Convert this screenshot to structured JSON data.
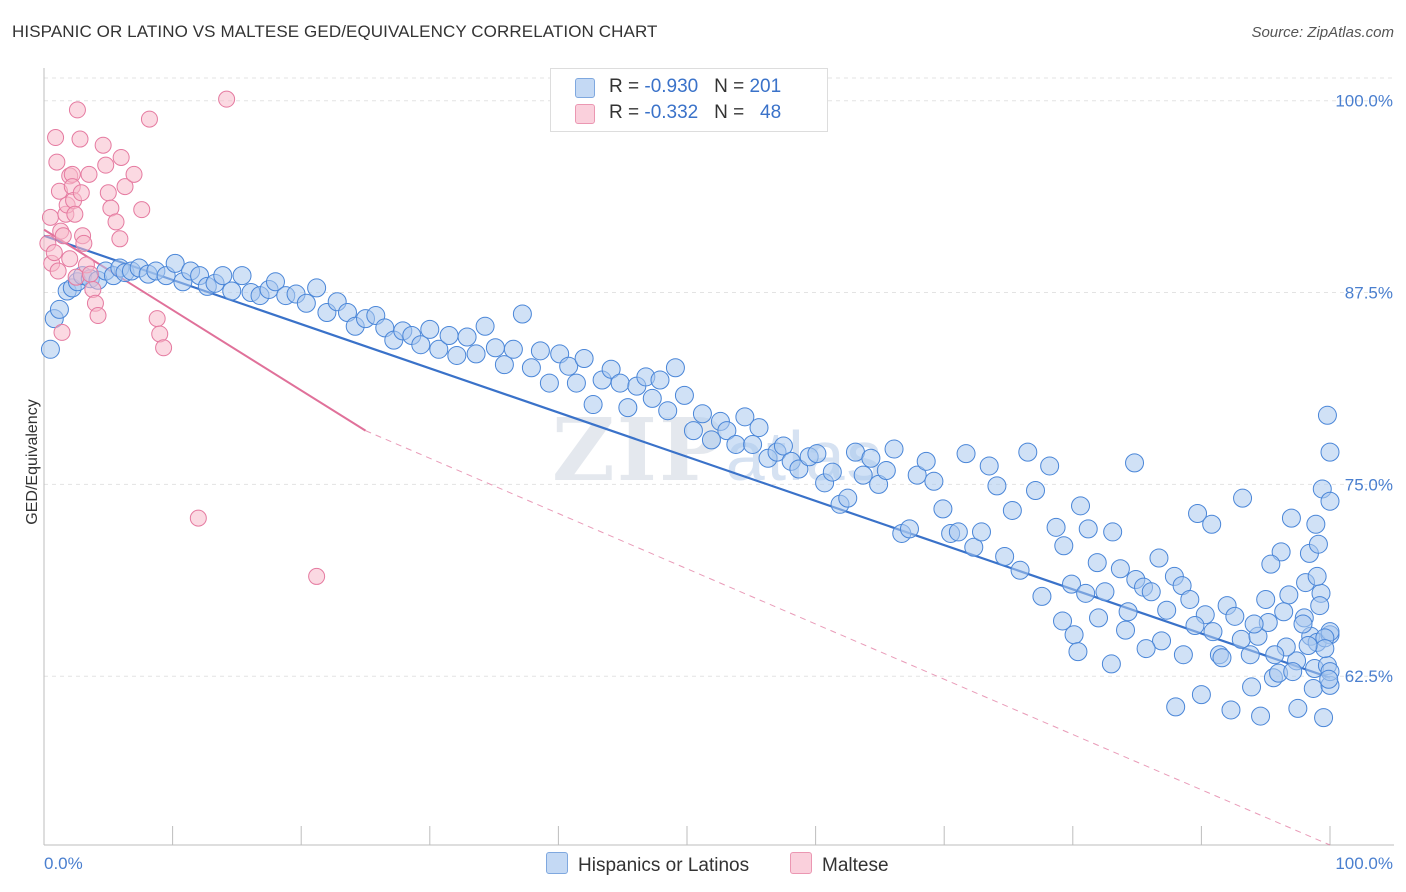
{
  "header": {
    "title": "HISPANIC OR LATINO VS MALTESE GED/EQUIVALENCY CORRELATION CHART",
    "source": "Source: ZipAtlas.com"
  },
  "watermark": {
    "zip": "ZIP",
    "atlas": "atlas"
  },
  "legend_top": {
    "rows": [
      {
        "r_label": "R = ",
        "r_value": "-0.930",
        "n_label": "N = ",
        "n_value": "201",
        "color": "#a9c8ef"
      },
      {
        "r_label": "R = ",
        "r_value": "-0.332",
        "n_label": "N = ",
        "n_value": "48",
        "color": "#f7b9cb"
      }
    ]
  },
  "legend_bottom": {
    "items": [
      {
        "label": "Hispanics or Latinos",
        "color": "#a9c8ef"
      },
      {
        "label": "Maltese",
        "color": "#f7b9cb"
      }
    ]
  },
  "chart_data": {
    "type": "scatter",
    "title": "HISPANIC OR LATINO VS MALTESE GED/EQUIVALENCY CORRELATION CHART",
    "xlabel": "",
    "ylabel": "GED/Equivalency",
    "xlim": [
      0,
      100
    ],
    "ylim": [
      51.5,
      102
    ],
    "x_tick_labels": [
      "0.0%",
      "100.0%"
    ],
    "y_ticks": [
      62.5,
      75.0,
      87.5,
      100.0
    ],
    "y_tick_labels": [
      "62.5%",
      "75.0%",
      "87.5%",
      "100.0%"
    ],
    "grid": true,
    "grid_style": "dashed horizontal",
    "legend_position": "top-center",
    "series": [
      {
        "name": "Hispanics or Latinos",
        "color": "#4a86d8",
        "fill": "#a9c8ef",
        "trend": {
          "x0": 0,
          "y0": 91.2,
          "x1": 100,
          "y1": 62.4,
          "style": "solid",
          "line_color": "#3a72c9"
        },
        "points": [
          [
            0.5,
            83.8
          ],
          [
            0.8,
            85.8
          ],
          [
            1.2,
            86.4
          ],
          [
            1.8,
            87.6
          ],
          [
            2.2,
            87.8
          ],
          [
            2.6,
            88.2
          ],
          [
            3.0,
            88.6
          ],
          [
            3.6,
            88.4
          ],
          [
            4.2,
            88.3
          ],
          [
            4.8,
            88.9
          ],
          [
            5.4,
            88.6
          ],
          [
            5.9,
            89.1
          ],
          [
            6.3,
            88.8
          ],
          [
            6.8,
            88.9
          ],
          [
            7.4,
            89.1
          ],
          [
            8.1,
            88.7
          ],
          [
            8.7,
            88.9
          ],
          [
            9.5,
            88.6
          ],
          [
            10.2,
            89.4
          ],
          [
            10.8,
            88.2
          ],
          [
            11.4,
            88.9
          ],
          [
            12.1,
            88.6
          ],
          [
            12.7,
            87.9
          ],
          [
            13.3,
            88.1
          ],
          [
            13.9,
            88.6
          ],
          [
            14.6,
            87.6
          ],
          [
            15.4,
            88.6
          ],
          [
            16.1,
            87.5
          ],
          [
            16.8,
            87.3
          ],
          [
            17.5,
            87.7
          ],
          [
            18.0,
            88.2
          ],
          [
            18.8,
            87.3
          ],
          [
            19.6,
            87.4
          ],
          [
            20.4,
            86.8
          ],
          [
            21.2,
            87.8
          ],
          [
            22.0,
            86.2
          ],
          [
            22.8,
            86.9
          ],
          [
            23.6,
            86.2
          ],
          [
            24.2,
            85.3
          ],
          [
            25.0,
            85.8
          ],
          [
            25.8,
            86.0
          ],
          [
            26.5,
            85.2
          ],
          [
            27.2,
            84.4
          ],
          [
            27.9,
            85.0
          ],
          [
            28.6,
            84.7
          ],
          [
            29.3,
            84.1
          ],
          [
            30.0,
            85.1
          ],
          [
            30.7,
            83.8
          ],
          [
            31.5,
            84.7
          ],
          [
            32.1,
            83.4
          ],
          [
            32.9,
            84.6
          ],
          [
            33.6,
            83.5
          ],
          [
            34.3,
            85.3
          ],
          [
            35.1,
            83.9
          ],
          [
            35.8,
            82.8
          ],
          [
            36.5,
            83.8
          ],
          [
            37.2,
            86.1
          ],
          [
            37.9,
            82.6
          ],
          [
            38.6,
            83.7
          ],
          [
            39.3,
            81.6
          ],
          [
            40.1,
            83.5
          ],
          [
            40.8,
            82.7
          ],
          [
            41.4,
            81.6
          ],
          [
            42.0,
            83.2
          ],
          [
            42.7,
            80.2
          ],
          [
            43.4,
            81.8
          ],
          [
            44.1,
            82.5
          ],
          [
            44.8,
            81.6
          ],
          [
            45.4,
            80.0
          ],
          [
            46.1,
            81.4
          ],
          [
            46.8,
            82.0
          ],
          [
            47.3,
            80.6
          ],
          [
            47.9,
            81.8
          ],
          [
            48.5,
            79.8
          ],
          [
            49.1,
            82.6
          ],
          [
            49.8,
            80.8
          ],
          [
            50.5,
            78.5
          ],
          [
            51.2,
            79.6
          ],
          [
            51.9,
            77.9
          ],
          [
            52.6,
            79.1
          ],
          [
            53.1,
            78.5
          ],
          [
            53.8,
            77.6
          ],
          [
            54.5,
            79.4
          ],
          [
            55.1,
            77.6
          ],
          [
            55.6,
            78.7
          ],
          [
            56.3,
            76.7
          ],
          [
            57.0,
            77.1
          ],
          [
            57.5,
            77.5
          ],
          [
            58.1,
            76.5
          ],
          [
            58.7,
            76.0
          ],
          [
            59.5,
            76.8
          ],
          [
            60.1,
            77.0
          ],
          [
            60.7,
            75.1
          ],
          [
            61.3,
            75.8
          ],
          [
            61.9,
            73.7
          ],
          [
            62.5,
            74.1
          ],
          [
            63.1,
            77.1
          ],
          [
            63.7,
            75.6
          ],
          [
            64.3,
            76.7
          ],
          [
            64.9,
            75.0
          ],
          [
            65.5,
            75.9
          ],
          [
            66.1,
            77.3
          ],
          [
            66.7,
            71.8
          ],
          [
            67.3,
            72.1
          ],
          [
            67.9,
            75.6
          ],
          [
            68.6,
            76.5
          ],
          [
            69.2,
            75.2
          ],
          [
            69.9,
            73.4
          ],
          [
            70.5,
            71.8
          ],
          [
            71.1,
            71.9
          ],
          [
            71.7,
            77.0
          ],
          [
            72.3,
            70.9
          ],
          [
            72.9,
            71.9
          ],
          [
            73.5,
            76.2
          ],
          [
            74.1,
            74.9
          ],
          [
            74.7,
            70.3
          ],
          [
            75.3,
            73.3
          ],
          [
            75.9,
            69.4
          ],
          [
            76.5,
            77.1
          ],
          [
            77.1,
            74.6
          ],
          [
            77.6,
            67.7
          ],
          [
            78.2,
            76.2
          ],
          [
            78.7,
            72.2
          ],
          [
            79.3,
            71.0
          ],
          [
            79.9,
            68.5
          ],
          [
            80.6,
            73.6
          ],
          [
            81.2,
            72.1
          ],
          [
            81.9,
            69.9
          ],
          [
            82.5,
            68.0
          ],
          [
            83.1,
            71.9
          ],
          [
            83.7,
            69.5
          ],
          [
            84.3,
            66.7
          ],
          [
            84.9,
            68.8
          ],
          [
            85.5,
            68.3
          ],
          [
            86.1,
            68.0
          ],
          [
            86.7,
            70.2
          ],
          [
            87.3,
            66.8
          ],
          [
            87.9,
            69.0
          ],
          [
            88.5,
            68.4
          ],
          [
            89.1,
            67.5
          ],
          [
            89.7,
            73.1
          ],
          [
            90.3,
            66.5
          ],
          [
            90.9,
            65.4
          ],
          [
            91.4,
            63.9
          ],
          [
            92.0,
            67.1
          ],
          [
            92.6,
            66.4
          ],
          [
            93.1,
            64.9
          ],
          [
            93.8,
            63.9
          ],
          [
            94.4,
            65.1
          ],
          [
            95.0,
            67.5
          ],
          [
            95.6,
            62.4
          ],
          [
            96.2,
            70.6
          ],
          [
            96.8,
            67.8
          ],
          [
            97.4,
            63.5
          ],
          [
            98.0,
            66.3
          ],
          [
            98.5,
            65.1
          ],
          [
            99.0,
            64.7
          ],
          [
            99.5,
            59.8
          ],
          [
            100.0,
            65.2
          ],
          [
            84.8,
            76.4
          ],
          [
            88.0,
            60.5
          ],
          [
            90.0,
            61.3
          ],
          [
            92.3,
            60.3
          ],
          [
            94.6,
            59.9
          ],
          [
            96.0,
            62.7
          ],
          [
            97.5,
            60.4
          ],
          [
            98.8,
            63.0
          ],
          [
            99.3,
            67.9
          ],
          [
            99.8,
            63.2
          ],
          [
            100.0,
            65.4
          ],
          [
            90.8,
            72.4
          ],
          [
            93.2,
            74.1
          ],
          [
            95.4,
            69.8
          ],
          [
            96.4,
            66.7
          ],
          [
            97.0,
            72.8
          ],
          [
            98.1,
            68.6
          ],
          [
            98.7,
            61.7
          ],
          [
            99.2,
            67.1
          ],
          [
            99.6,
            65.0
          ],
          [
            100.0,
            61.9
          ],
          [
            93.9,
            61.8
          ],
          [
            95.2,
            66.0
          ],
          [
            96.6,
            64.4
          ],
          [
            97.9,
            65.9
          ],
          [
            99.0,
            69.0
          ],
          [
            99.6,
            64.3
          ],
          [
            100.0,
            62.8
          ],
          [
            98.4,
            70.5
          ],
          [
            99.1,
            71.1
          ],
          [
            99.8,
            79.5
          ],
          [
            100.0,
            77.1
          ],
          [
            99.4,
            74.7
          ],
          [
            100.0,
            73.9
          ],
          [
            98.9,
            72.4
          ],
          [
            91.6,
            63.7
          ],
          [
            94.1,
            65.9
          ],
          [
            95.7,
            63.9
          ],
          [
            97.1,
            62.8
          ],
          [
            98.3,
            64.5
          ],
          [
            99.9,
            62.3
          ],
          [
            88.6,
            63.9
          ],
          [
            89.5,
            65.8
          ],
          [
            86.9,
            64.8
          ],
          [
            85.7,
            64.3
          ],
          [
            84.1,
            65.5
          ],
          [
            83.0,
            63.3
          ],
          [
            82.0,
            66.3
          ],
          [
            81.0,
            67.9
          ],
          [
            80.1,
            65.2
          ],
          [
            79.2,
            66.1
          ],
          [
            80.4,
            64.1
          ]
        ]
      },
      {
        "name": "Maltese",
        "color": "#e57aa0",
        "fill": "#f7b9cb",
        "trend": {
          "x0": 0,
          "y0": 91.6,
          "x1": 25,
          "y1": 78.5,
          "x2": 100,
          "y2": 39.0,
          "style": "solid-then-dashed",
          "line_color": "#e0719a"
        },
        "points": [
          [
            0.3,
            90.7
          ],
          [
            0.5,
            92.4
          ],
          [
            0.6,
            89.4
          ],
          [
            0.8,
            90.1
          ],
          [
            0.9,
            97.6
          ],
          [
            1.0,
            96.0
          ],
          [
            1.1,
            88.9
          ],
          [
            1.2,
            94.1
          ],
          [
            1.3,
            91.5
          ],
          [
            1.4,
            84.9
          ],
          [
            1.5,
            91.2
          ],
          [
            1.7,
            92.6
          ],
          [
            1.8,
            93.2
          ],
          [
            2.0,
            95.1
          ],
          [
            2.0,
            89.7
          ],
          [
            2.2,
            95.2
          ],
          [
            2.2,
            94.4
          ],
          [
            2.3,
            93.5
          ],
          [
            2.4,
            92.6
          ],
          [
            2.5,
            88.5
          ],
          [
            2.6,
            99.4
          ],
          [
            2.8,
            97.5
          ],
          [
            2.9,
            94.0
          ],
          [
            3.0,
            91.2
          ],
          [
            3.1,
            90.7
          ],
          [
            3.3,
            89.3
          ],
          [
            3.5,
            95.2
          ],
          [
            3.6,
            88.7
          ],
          [
            3.8,
            87.7
          ],
          [
            4.0,
            86.8
          ],
          [
            4.2,
            86.0
          ],
          [
            4.6,
            97.1
          ],
          [
            4.8,
            95.8
          ],
          [
            5.0,
            94.0
          ],
          [
            5.2,
            93.0
          ],
          [
            5.6,
            92.1
          ],
          [
            5.9,
            91.0
          ],
          [
            6.0,
            96.3
          ],
          [
            6.3,
            94.4
          ],
          [
            7.0,
            95.2
          ],
          [
            7.6,
            92.9
          ],
          [
            8.2,
            98.8
          ],
          [
            8.8,
            85.8
          ],
          [
            9.0,
            84.8
          ],
          [
            9.3,
            83.9
          ],
          [
            12.0,
            72.8
          ],
          [
            14.2,
            100.1
          ],
          [
            21.2,
            69.0
          ]
        ]
      }
    ]
  }
}
